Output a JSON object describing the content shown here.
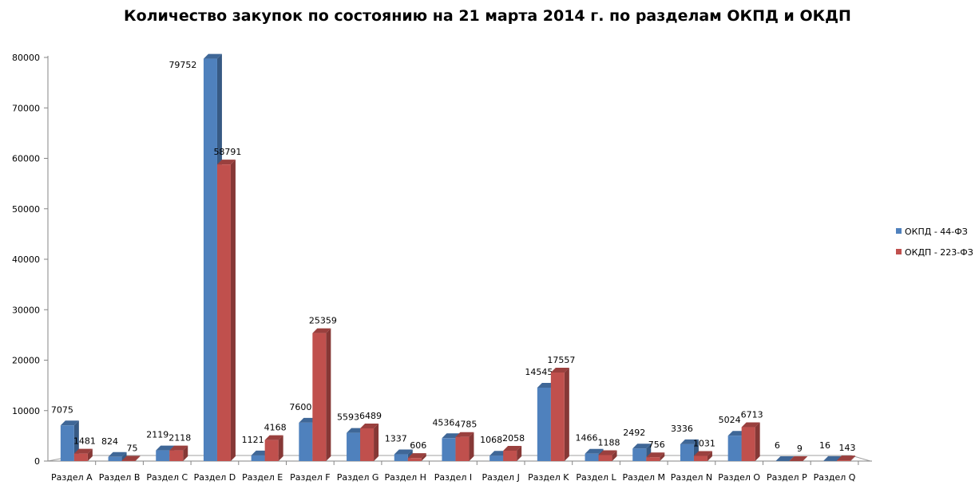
{
  "chart_data": {
    "type": "bar",
    "title": "Количество закупок по состоянию на 21 марта 2014 г. по разделам ОКПД и ОКДП",
    "xlabel": "",
    "ylabel": "",
    "ylim": [
      0,
      80000
    ],
    "yticks": [
      0,
      10000,
      20000,
      30000,
      40000,
      50000,
      60000,
      70000,
      80000
    ],
    "grid": false,
    "legend": "right",
    "three_d": true,
    "categories": [
      "Раздел A",
      "Раздел B",
      "Раздел C",
      "Раздел D",
      "Раздел E",
      "Раздел F",
      "Раздел G",
      "Раздел H",
      "Раздел I",
      "Раздел J",
      "Раздел K",
      "Раздел L",
      "Раздел M",
      "Раздел N",
      "Раздел O",
      "Раздел P",
      "Раздел Q"
    ],
    "series": [
      {
        "name": "ОКПД - 44-ФЗ",
        "color": "#4F81BD",
        "values": [
          7075,
          824,
          2119,
          79752,
          1121,
          7600,
          5593,
          1337,
          4536,
          1068,
          14545,
          1466,
          2492,
          3336,
          5024,
          6,
          16
        ]
      },
      {
        "name": "ОКДП - 223-ФЗ",
        "color": "#C0504D",
        "values": [
          1481,
          75,
          2118,
          58791,
          4168,
          25359,
          6489,
          606,
          4785,
          2058,
          17557,
          1188,
          756,
          1031,
          6713,
          9,
          143
        ]
      }
    ]
  }
}
